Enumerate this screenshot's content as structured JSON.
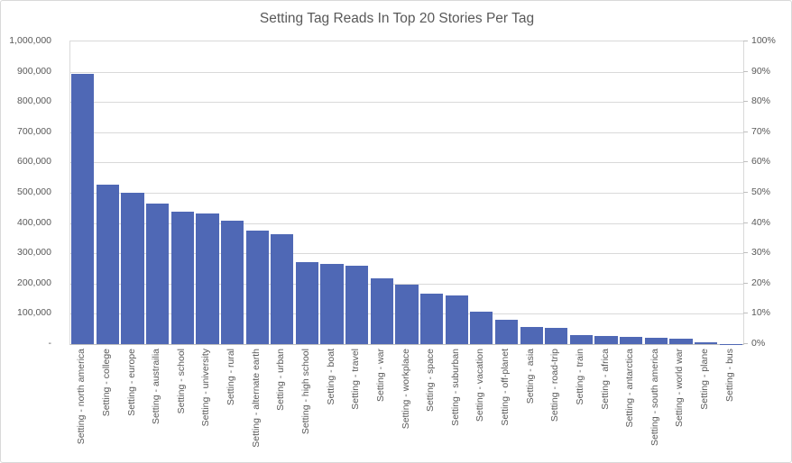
{
  "colors": {
    "bar": "#4F68B5",
    "gridline": "#D9D9D9",
    "axis_line": "#BFBFBF",
    "text": "#595959",
    "chart_border": "#D9D9D9",
    "background": "#FFFFFF"
  },
  "chart_data": {
    "type": "bar",
    "title": "Setting Tag Reads In Top 20 Stories Per Tag",
    "categories": [
      "Setting - north america",
      "Setting - college",
      "Setting - europe",
      "Setting - austrailia",
      "Setting - school",
      "Setting - university",
      "Setting - rural",
      "Setting - alternate earth",
      "Setting - urban",
      "Setting - high school",
      "Setting - boat",
      "Setting - travel",
      "Setting - war",
      "Setting - workplace",
      "Setting - space",
      "Setting - suburban",
      "Setting - vacation",
      "Setting - off-planet",
      "Setting - asia",
      "Setting - road-trip",
      "Setting - train",
      "Setting - africa",
      "Setting - antarctica",
      "Setting - south america",
      "Setting - world war",
      "Setting - plane",
      "Setting - bus"
    ],
    "values": [
      893000,
      528000,
      500000,
      464000,
      437000,
      433000,
      408000,
      374000,
      362000,
      271000,
      265000,
      260000,
      217000,
      196000,
      168000,
      161000,
      106000,
      80000,
      56000,
      53000,
      29000,
      27500,
      23000,
      20000,
      19000,
      5500,
      1500
    ],
    "xlabel": "",
    "ylabel": "",
    "grid": true,
    "legend": false,
    "left_axis": {
      "min": 0,
      "max": 1000000,
      "step": 100000,
      "tick_labels": [
        "-",
        "100,000",
        "200,000",
        "300,000",
        "400,000",
        "500,000",
        "600,000",
        "700,000",
        "800,000",
        "900,000",
        "1,000,000"
      ]
    },
    "right_axis": {
      "min": 0,
      "max": 1,
      "step": 0.1,
      "tick_labels": [
        "0%",
        "10%",
        "20%",
        "30%",
        "40%",
        "50%",
        "60%",
        "70%",
        "80%",
        "90%",
        "100%"
      ]
    }
  }
}
